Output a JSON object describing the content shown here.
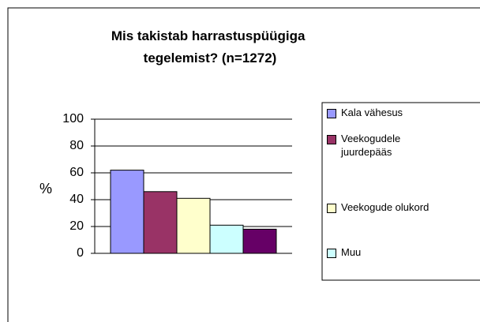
{
  "chart_data": {
    "type": "bar",
    "title": "Mis takistab harrastuspüügiga tegelemist? (n=1272)",
    "y_label": "%",
    "series": [
      {
        "name": "Kala vähesus",
        "color": "#9999ff",
        "values": [
          62
        ]
      },
      {
        "name": "Veekogudele juurdepääs",
        "color": "#993366",
        "values": [
          46
        ]
      },
      {
        "name": "Veekogude olukord",
        "color": "#ffffcc",
        "values": [
          41
        ]
      },
      {
        "name": "Muu",
        "color": "#ccffff",
        "values": [
          21
        ]
      },
      {
        "name": null,
        "color": "#660066",
        "values": [
          18
        ]
      }
    ],
    "ylim": [
      0,
      100
    ],
    "yticks": [
      0,
      20,
      40,
      60,
      80,
      100
    ],
    "grid": true,
    "legend": "right"
  }
}
